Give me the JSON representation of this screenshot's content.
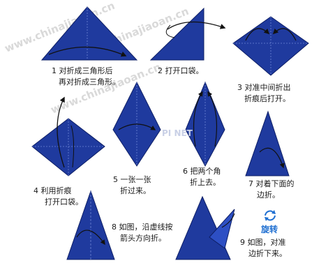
{
  "watermark": {
    "text": "www.chinajiaoan.cn",
    "center_text": "PI   NET"
  },
  "steps": [
    {
      "line1": "1 对折成三角形后",
      "line2": "再对折成三角形。"
    },
    {
      "line1": "2 打开口袋。",
      "line2": ""
    },
    {
      "line1": "3 对准中间折出",
      "line2": "折痕后打开。"
    },
    {
      "line1": "4 利用折痕",
      "line2": "打开口袋。"
    },
    {
      "line1": "5 一张一张",
      "line2": "折过来。"
    },
    {
      "line1": "6 把两个角",
      "line2": "折上去。"
    },
    {
      "line1": "7 对着下面的",
      "line2": "边折。"
    },
    {
      "line1": "8 如图，沿虚线按",
      "line2": "箭头方向折。"
    },
    {
      "line1": "9 如图，对准",
      "line2": "边折下来。"
    }
  ],
  "rotate_label": "旋转",
  "colors": {
    "paper": "#1f3a9e",
    "paper_light": "#2d4fc4",
    "arrow": "#111111"
  }
}
